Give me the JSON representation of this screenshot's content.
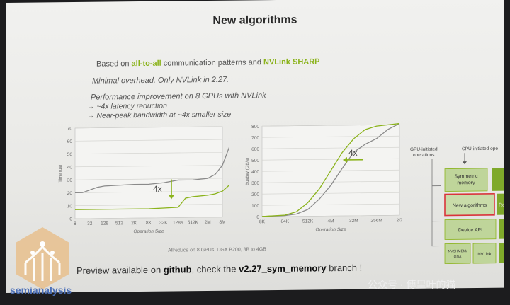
{
  "slide": {
    "title": "New algorithms",
    "line1_pre": "Based on ",
    "line1_hl1": "all-to-all",
    "line1_mid": " communication patterns and ",
    "line1_hl2": "NVLink SHARP",
    "line2": "Minimal overhead. Only NVLink in 2.27.",
    "line3": "Performance improvement on 8 GPUs with NVLink",
    "line4": "→ ~4x latency reduction",
    "line5": "→ Near-peak bandwidth at ~4x smaller size",
    "caption": "Allreduce on 8 GPUs, DGX B200, 8B to 4GB",
    "footer_pre": "Preview available on ",
    "footer_b1": "github",
    "footer_mid": ", check the ",
    "footer_b2": "v2.27_sym_memory",
    "footer_post": " branch !",
    "accent": "#8bb31c"
  },
  "diagram": {
    "gpu_label": "GPU-initiated operations",
    "gpu_label_1": "GPU-initiated",
    "gpu_label_2": "operations",
    "cpu_label": "CPU-initiated ope",
    "box_sym_1": "Symmetric",
    "box_sym_2": "memory",
    "box_new": "New algorithms",
    "box_re": "Re",
    "box_api": "Device API",
    "box_nvls_1": "NVSHMEM/",
    "box_nvls_2": "GDA",
    "box_nvlink": "NVLink"
  },
  "branding": {
    "logo": "semianalysis",
    "watermark": "公众号 · 傅里叶的猫"
  },
  "chart_data": [
    {
      "type": "line",
      "title": "",
      "xlabel": "Operation Size",
      "ylabel": "Time (us)",
      "ylim": [
        0,
        70
      ],
      "yticks": [
        "0",
        "10",
        "20",
        "30",
        "40",
        "50",
        "60",
        "70"
      ],
      "x_ticks": [
        "8",
        "32",
        "128",
        "512",
        "2K",
        "8K",
        "32K",
        "128K",
        "512K",
        "2M",
        "8M"
      ],
      "annotation": "4x",
      "grid": true,
      "series": [
        {
          "color": "#8a8a8a",
          "values": [
            [
              0,
              20
            ],
            [
              0.5,
              20
            ],
            [
              1,
              22
            ],
            [
              1.5,
              24
            ],
            [
              2,
              25
            ],
            [
              3,
              25.5
            ],
            [
              4,
              26
            ],
            [
              5,
              26
            ],
            [
              6,
              27
            ],
            [
              7,
              29
            ],
            [
              8,
              29
            ],
            [
              9,
              30
            ],
            [
              9.5,
              33
            ],
            [
              10,
              40
            ],
            [
              10.5,
              55
            ],
            [
              11,
              62
            ]
          ]
        },
        {
          "color": "#8bb31c",
          "values": [
            [
              0,
              7
            ],
            [
              1,
              7
            ],
            [
              2,
              7
            ],
            [
              3,
              7
            ],
            [
              4,
              7
            ],
            [
              5,
              7
            ],
            [
              6,
              7.5
            ],
            [
              7,
              8
            ],
            [
              7.5,
              15
            ],
            [
              8,
              16
            ],
            [
              9,
              17
            ],
            [
              9.5,
              18
            ],
            [
              10,
              20
            ],
            [
              10.5,
              25
            ],
            [
              11,
              31
            ]
          ]
        }
      ]
    },
    {
      "type": "line",
      "title": "",
      "xlabel": "Operation Size",
      "ylabel": "BusBW (GB/s)",
      "ylim": [
        0,
        800
      ],
      "yticks": [
        "0",
        "100",
        "200",
        "300",
        "400",
        "500",
        "600",
        "700",
        "800"
      ],
      "x_ticks": [
        "8K",
        "64K",
        "512K",
        "4M",
        "32M",
        "256M",
        "2G"
      ],
      "annotation": "4x",
      "grid": true,
      "series": [
        {
          "color": "#8a8a8a",
          "values": [
            [
              0,
              2
            ],
            [
              1,
              8
            ],
            [
              1.5,
              20
            ],
            [
              2,
              60
            ],
            [
              2.5,
              150
            ],
            [
              3,
              270
            ],
            [
              3.5,
              420
            ],
            [
              4,
              560
            ],
            [
              4.5,
              630
            ],
            [
              5,
              680
            ],
            [
              5.5,
              760
            ],
            [
              6,
              810
            ]
          ]
        },
        {
          "color": "#8bb31c",
          "values": [
            [
              0,
              2
            ],
            [
              1,
              12
            ],
            [
              1.5,
              40
            ],
            [
              2,
              120
            ],
            [
              2.5,
              240
            ],
            [
              3,
              400
            ],
            [
              3.5,
              560
            ],
            [
              4,
              680
            ],
            [
              4.5,
              760
            ],
            [
              5,
              790
            ],
            [
              5.5,
              800
            ],
            [
              6,
              810
            ]
          ]
        }
      ]
    }
  ]
}
